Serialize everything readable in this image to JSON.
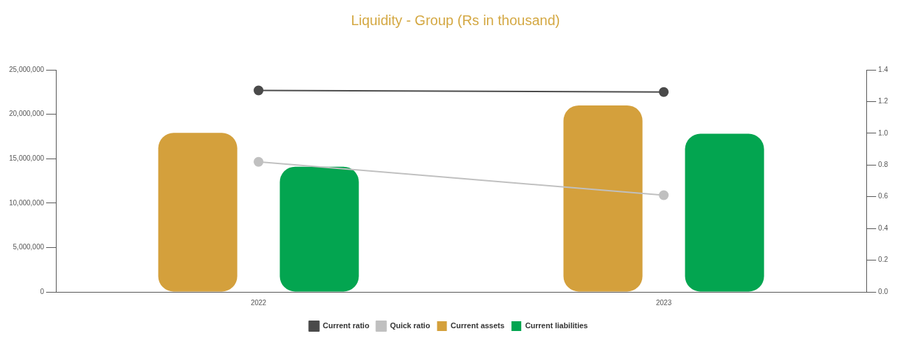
{
  "chart_data": {
    "type": "bar",
    "title": "Liquidity - Group  (Rs in thousand)",
    "categories": [
      "2022",
      "2023"
    ],
    "series": [
      {
        "name": "Current assets",
        "color": "#d4a03c",
        "values": [
          17900000,
          21000000
        ]
      },
      {
        "name": "Current liabilities",
        "color": "#03a550",
        "values": [
          14100000,
          17800000
        ]
      },
      {
        "name": "Current ratio",
        "type": "line",
        "axis": "y2",
        "color": "#4a4a4a",
        "values": [
          1.27,
          1.26
        ]
      },
      {
        "name": "Quick ratio",
        "type": "line",
        "axis": "y2",
        "color": "#c0c0c0",
        "values": [
          0.82,
          0.61
        ]
      }
    ],
    "ylim": [
      0,
      25000000
    ],
    "yticks": [
      {
        "value": 0,
        "label": "0"
      },
      {
        "value": 5000000,
        "label": "5,000,000"
      },
      {
        "value": 10000000,
        "label": "10,000,000"
      },
      {
        "value": 15000000,
        "label": "15,000,000"
      },
      {
        "value": 20000000,
        "label": "20,000,000"
      },
      {
        "value": 25000000,
        "label": "25,000,000"
      }
    ],
    "y2lim": [
      0,
      1.4
    ],
    "y2ticks": [
      {
        "value": 0,
        "label": "0.0"
      },
      {
        "value": 0.2,
        "label": "0.2"
      },
      {
        "value": 0.4,
        "label": "0.4"
      },
      {
        "value": 0.6,
        "label": "0.6"
      },
      {
        "value": 0.8,
        "label": "0.8"
      },
      {
        "value": 1,
        "label": "1.0"
      },
      {
        "value": 1.2,
        "label": "1.2"
      },
      {
        "value": 1.4,
        "label": "1.4"
      }
    ],
    "grid": false,
    "legend": "bottom",
    "marker": "circle"
  }
}
